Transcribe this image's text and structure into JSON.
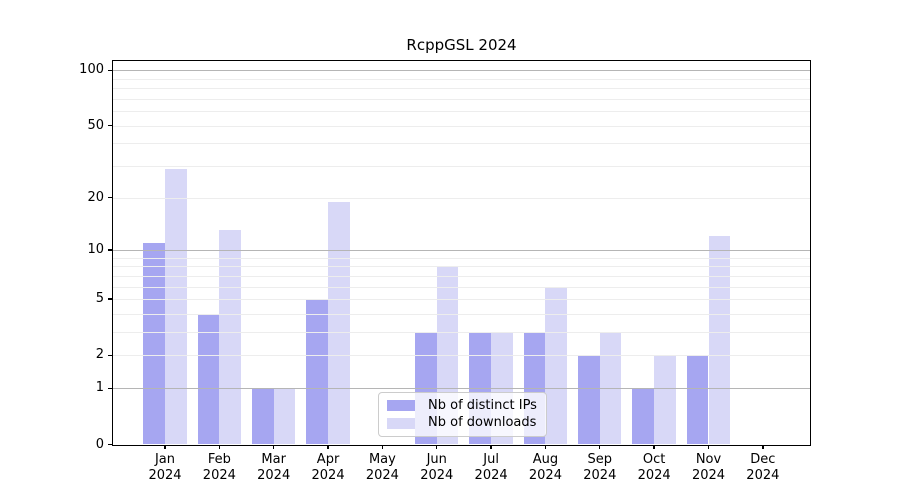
{
  "title": "RcppGSL 2024",
  "legend": {
    "items": [
      {
        "key": "ips",
        "label": "Nb of distinct IPs"
      },
      {
        "key": "downloads",
        "label": "Nb of downloads"
      }
    ]
  },
  "colors": {
    "ips_bar": "#a6a6f1",
    "downloads_bar": "#d8d8f7",
    "grid_major": "#b5b5b5",
    "grid_minor": "#ededed",
    "axis": "#000000",
    "legend_border": "#cccccc",
    "background": "#ffffff"
  },
  "chart_data": {
    "type": "bar",
    "title": "RcppGSL 2024",
    "y_scale": "log1p",
    "x_categories": [
      "Jan",
      "Feb",
      "Mar",
      "Apr",
      "May",
      "Jun",
      "Jul",
      "Aug",
      "Sep",
      "Oct",
      "Nov",
      "Dec"
    ],
    "x_year": "2024",
    "series": [
      {
        "name": "Nb of distinct IPs",
        "key": "ips",
        "values": [
          11,
          4,
          1,
          5,
          0,
          3,
          3,
          3,
          2,
          1,
          2,
          0
        ]
      },
      {
        "name": "Nb of downloads",
        "key": "downloads",
        "values": [
          29,
          13,
          1,
          19,
          0,
          8,
          3,
          6,
          3,
          2,
          12,
          0
        ]
      }
    ],
    "y_tick_labels": [
      0,
      1,
      2,
      5,
      10,
      20,
      50,
      100
    ],
    "grid_major_values": [
      1,
      10,
      100
    ],
    "grid_minor_values": [
      2,
      3,
      4,
      5,
      6,
      7,
      8,
      9,
      20,
      30,
      40,
      50,
      60,
      70,
      80,
      90
    ],
    "ylim": [
      0,
      111
    ],
    "grid": true,
    "legend_position": "lower-center"
  }
}
